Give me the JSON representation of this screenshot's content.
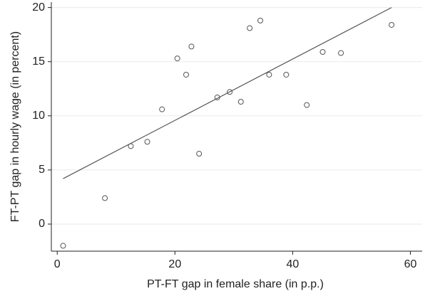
{
  "chart_data": {
    "type": "scatter",
    "xlabel": "PT-FT gap in female share (in p.p.)",
    "ylabel": "FT-PT gap in hourly wage (in percent)",
    "x": [
      1.0,
      8.1,
      12.5,
      15.3,
      17.8,
      20.4,
      21.9,
      22.8,
      24.1,
      27.2,
      29.3,
      31.2,
      32.7,
      34.5,
      36.0,
      38.9,
      42.4,
      45.1,
      48.2,
      56.8
    ],
    "values": [
      -2.0,
      2.4,
      7.2,
      7.6,
      10.6,
      15.3,
      13.8,
      16.4,
      6.5,
      11.7,
      12.2,
      11.3,
      18.1,
      18.8,
      13.8,
      13.8,
      11.0,
      15.9,
      15.8,
      18.4
    ],
    "color": "#555555",
    "fit_line": {
      "x": [
        1.0,
        56.8
      ],
      "y": [
        4.2,
        20.0
      ],
      "color": "#555555"
    },
    "xlim": [
      -1,
      62
    ],
    "ylim": [
      -2.5,
      20.5
    ],
    "xticks": [
      0,
      20,
      40,
      60
    ],
    "yticks": [
      0,
      5,
      10,
      15,
      20
    ],
    "grid": true
  }
}
